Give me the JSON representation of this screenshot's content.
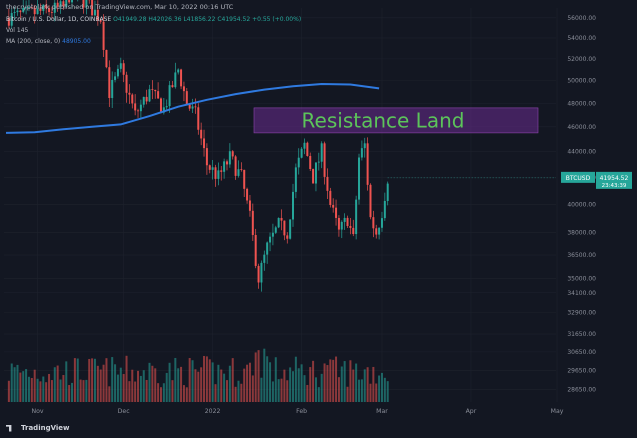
{
  "header": {
    "publisher": "thecryptolark published on TradingView.com, Mar 10, 2022 00:16 UTC"
  },
  "legend": {
    "symbol": "Bitcoin / U.S. Dollar, 1D, COINBASE",
    "open": "O41949.28",
    "high": "H42026.36",
    "low": "L41856.22",
    "close": "C41954.52",
    "change": "+0.55 (+0.00%)",
    "vol": "Vol  145",
    "ma_label": "MA (200, close, 0)",
    "ma_value": "48905.00"
  },
  "annotation": {
    "text": "Resistance Land",
    "y_from": 45500,
    "y_to": 47600,
    "color": "#6a2b8f",
    "text_color": "#5cc45a"
  },
  "price_badge": {
    "symbol": "BTCUSD",
    "price": "41954.52",
    "countdown": "23:43:39"
  },
  "footer": {
    "brand": "TradingView"
  },
  "colors": {
    "background": "#131722",
    "up": "#26a69a",
    "down": "#ef5350",
    "ma": "#2f7ae0",
    "grid": "#1e222d"
  },
  "chart_data": {
    "type": "candlestick",
    "scale": "log",
    "ylim": [
      28000,
      57000
    ],
    "y_ticks": [
      56000,
      54000,
      52000,
      50000,
      48000,
      46000,
      44000,
      42000,
      40000,
      38000,
      36500,
      35000,
      34100,
      32900,
      31650,
      30650,
      29650,
      28650
    ],
    "x_ticks": [
      "Nov",
      "Dec",
      "2022",
      "Feb",
      "Mar",
      "Apr",
      "May"
    ],
    "ma_series": [
      {
        "day": 0,
        "v": 45500
      },
      {
        "day": 10,
        "v": 45550
      },
      {
        "day": 20,
        "v": 45800
      },
      {
        "day": 30,
        "v": 46000
      },
      {
        "day": 40,
        "v": 46200
      },
      {
        "day": 50,
        "v": 46900
      },
      {
        "day": 60,
        "v": 47700
      },
      {
        "day": 70,
        "v": 48300
      },
      {
        "day": 80,
        "v": 48800
      },
      {
        "day": 90,
        "v": 49200
      },
      {
        "day": 100,
        "v": 49500
      },
      {
        "day": 110,
        "v": 49700
      },
      {
        "day": 120,
        "v": 49650
      },
      {
        "day": 130,
        "v": 49300
      }
    ],
    "price_path": [
      {
        "day": 0,
        "v": 56000
      },
      {
        "day": 20,
        "v": 57000
      },
      {
        "day": 23,
        "v": 59000
      },
      {
        "day": 33,
        "v": 56000
      },
      {
        "day": 36,
        "v": 49000
      },
      {
        "day": 40,
        "v": 51000
      },
      {
        "day": 45,
        "v": 47000
      },
      {
        "day": 50,
        "v": 49000
      },
      {
        "day": 55,
        "v": 47500
      },
      {
        "day": 60,
        "v": 51000
      },
      {
        "day": 63,
        "v": 48000
      },
      {
        "day": 66,
        "v": 47000
      },
      {
        "day": 70,
        "v": 43000
      },
      {
        "day": 74,
        "v": 42000
      },
      {
        "day": 78,
        "v": 43500
      },
      {
        "day": 82,
        "v": 42000
      },
      {
        "day": 85,
        "v": 39000
      },
      {
        "day": 88,
        "v": 35000
      },
      {
        "day": 91,
        "v": 37000
      },
      {
        "day": 95,
        "v": 38500
      },
      {
        "day": 98,
        "v": 38000
      },
      {
        "day": 101,
        "v": 42500
      },
      {
        "day": 104,
        "v": 44500
      },
      {
        "day": 107,
        "v": 42000
      },
      {
        "day": 110,
        "v": 44000
      },
      {
        "day": 113,
        "v": 40000
      },
      {
        "day": 116,
        "v": 38000
      },
      {
        "day": 119,
        "v": 39000
      },
      {
        "day": 121,
        "v": 37500
      },
      {
        "day": 123,
        "v": 43500
      },
      {
        "day": 125,
        "v": 44500
      },
      {
        "day": 127,
        "v": 39000
      },
      {
        "day": 129,
        "v": 38000
      },
      {
        "day": 131,
        "v": 39500
      },
      {
        "day": 133,
        "v": 42000
      }
    ]
  }
}
